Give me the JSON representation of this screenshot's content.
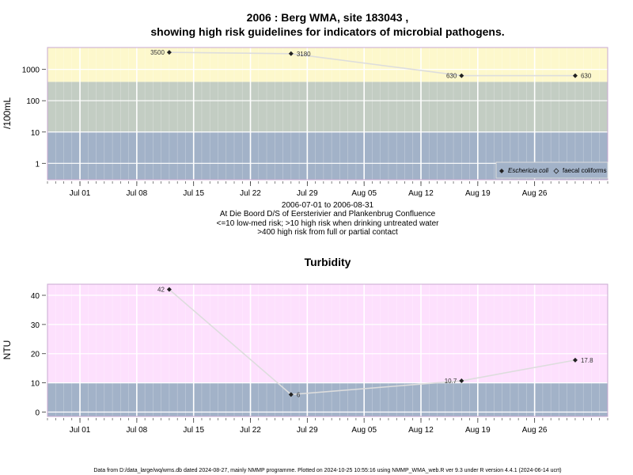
{
  "chart_data": [
    {
      "type": "line",
      "title_line1": "2006 : Berg WMA, site 183043 ,",
      "title_line2": "showing high risk guidelines for indicators of microbial pathogens.",
      "ylabel": "/100mL",
      "y_scale": "log",
      "ylim": [
        0.3,
        5000
      ],
      "y_ticks": [
        1,
        10,
        100,
        1000
      ],
      "y_tick_labels": [
        "1",
        "10",
        "100",
        "1000"
      ],
      "x_range": [
        "2006-06-27",
        "2006-09-04"
      ],
      "x_ticks": [
        "2006-07-01",
        "2006-07-08",
        "2006-07-15",
        "2006-07-22",
        "2006-07-29",
        "2006-08-05",
        "2006-08-12",
        "2006-08-19",
        "2006-08-26"
      ],
      "x_tick_labels": [
        "Jul 01",
        "Jul 08",
        "Jul 15",
        "Jul 22",
        "Jul 29",
        "Aug 05",
        "Aug 12",
        "Aug 19",
        "Aug 26"
      ],
      "grid": true,
      "bands": [
        {
          "from": 0.3,
          "to": 10,
          "color": "#a2b2c8"
        },
        {
          "from": 10,
          "to": 400,
          "color": "#c3cdc3"
        },
        {
          "from": 400,
          "to": 5000,
          "color": "#fdf8cc"
        }
      ],
      "series": [
        {
          "name": "Eschericia coli",
          "marker": "filled-diamond",
          "color": "#222222",
          "line_color": "#dddddd",
          "x": [
            "2006-07-12",
            "2006-07-27",
            "2006-08-17",
            "2006-08-31"
          ],
          "y": [
            3500,
            3180,
            630,
            630
          ],
          "labels": [
            "3500",
            "3180",
            "630",
            "630"
          ]
        },
        {
          "name": "faecal coliforms",
          "marker": "open-diamond",
          "color": "#222222",
          "line_color": "#dddddd",
          "x": [],
          "y": [],
          "labels": []
        }
      ],
      "legend": "bottom-right",
      "subtitle_lines": [
        "2006-07-01 to 2006-08-31",
        "At Die Boord D/S of Eersterivier and Plankenbrug Confluence",
        "<=10 low-med risk; >10 high risk when drinking untreated water",
        ">400 high risk from full or partial contact"
      ]
    },
    {
      "type": "line",
      "title": "Turbidity",
      "ylabel": "NTU",
      "y_scale": "linear",
      "ylim": [
        -1.5,
        43.8
      ],
      "y_ticks": [
        0,
        10,
        20,
        30,
        40
      ],
      "y_tick_labels": [
        "0",
        "10",
        "20",
        "30",
        "40"
      ],
      "x_range": [
        "2006-06-27",
        "2006-09-04"
      ],
      "x_ticks": [
        "2006-07-01",
        "2006-07-08",
        "2006-07-15",
        "2006-07-22",
        "2006-07-29",
        "2006-08-05",
        "2006-08-12",
        "2006-08-19",
        "2006-08-26"
      ],
      "x_tick_labels": [
        "Jul 01",
        "Jul 08",
        "Jul 15",
        "Jul 22",
        "Jul 29",
        "Aug 05",
        "Aug 12",
        "Aug 19",
        "Aug 26"
      ],
      "grid": true,
      "bands": [
        {
          "from": -1.5,
          "to": 10,
          "color": "#a2b2c8"
        },
        {
          "from": 10,
          "to": 43.8,
          "color": "#fde0fd"
        }
      ],
      "series": [
        {
          "name": "",
          "marker": "filled-diamond",
          "color": "#222222",
          "line_color": "#dddddd",
          "x": [
            "2006-07-12",
            "2006-07-27",
            "2006-08-17",
            "2006-08-31"
          ],
          "y": [
            42,
            6,
            10.7,
            17.8
          ],
          "labels": [
            "42",
            "6",
            "10.7",
            "17.8"
          ]
        }
      ]
    }
  ],
  "footer": "Data from D:/data_large/wq/wms.db dated 2024-08-27, mainly NMMP programme. Plotted on 2024-10-25 10:55:16 using NMMP_WMA_web.R ver 9.3 under R version 4.4.1 (2024-06-14 ucrt)"
}
